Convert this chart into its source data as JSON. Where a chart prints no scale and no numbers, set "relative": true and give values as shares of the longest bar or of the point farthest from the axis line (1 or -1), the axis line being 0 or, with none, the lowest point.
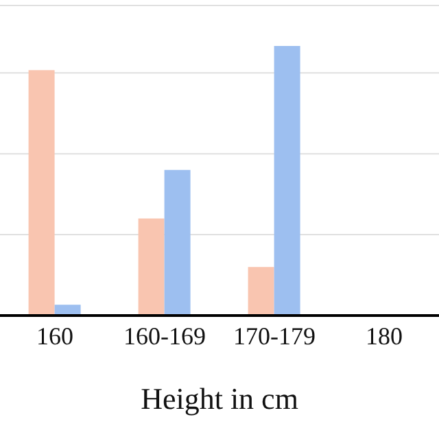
{
  "chart_data": {
    "type": "bar",
    "xlabel": "Height in cm",
    "categories": [
      "160",
      "160-169",
      "170-179",
      "180"
    ],
    "relative": true,
    "grid": "y",
    "series": [
      {
        "color": "#f9c5b0",
        "values": [
          0.91,
          0.36,
          0.18,
          null
        ]
      },
      {
        "color": "#9dbff0",
        "values": [
          0.04,
          0.54,
          1,
          null
        ]
      }
    ]
  }
}
